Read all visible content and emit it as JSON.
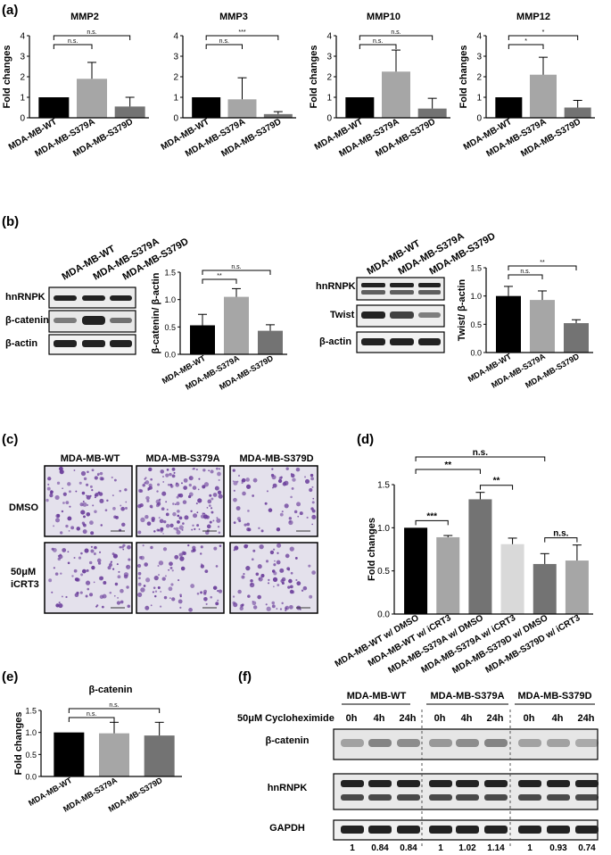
{
  "panel_labels": [
    "(a)",
    "(b)",
    "(c)",
    "(d)",
    "(e)",
    "(f)"
  ],
  "colors": {
    "wt": "#000000",
    "s379a": "#a6a6a6",
    "s379d": "#737373",
    "light": "#d9d9d9",
    "stain": "#6a3d9a",
    "background": "#ffffff"
  },
  "ylabel_fold": "Fold changes",
  "groups3": [
    "MDA-MB-WT",
    "MDA-MB-S379A",
    "MDA-MB-S379D"
  ],
  "panel_b": {
    "blot1_rows": [
      "hnRNPK",
      "β-catenin",
      "β-actin"
    ],
    "blot2_rows": [
      "hnRNPK",
      "Twist",
      "β-actin"
    ],
    "chart1_ylabel": "β-catenin/ β-actin",
    "chart2_ylabel": "Twist/ β-actin"
  },
  "panel_c": {
    "columns": [
      "MDA-MB-WT",
      "MDA-MB-S379A",
      "MDA-MB-S379D"
    ],
    "rows": [
      "DMSO",
      "50μM",
      "iCRT3"
    ]
  },
  "panel_f": {
    "groups": [
      "MDA-MB-WT",
      "MDA-MB-S379A",
      "MDA-MB-S379D"
    ],
    "treatment": "50μM Cycloheximide",
    "times": [
      "0h",
      "4h",
      "24h"
    ],
    "blot_rows": [
      "β-catenin",
      "hnRNPK",
      "GAPDH"
    ],
    "ratios": [
      "1",
      "0.84",
      "0.84",
      "1",
      "1.02",
      "1.14",
      "1",
      "0.93",
      "0.74"
    ]
  },
  "chart_data": [
    {
      "id": "a1",
      "type": "bar",
      "title": "MMP2",
      "ylabel": "Fold changes",
      "categories": [
        "MDA-MB-WT",
        "MDA-MB-S379A",
        "MDA-MB-S379D"
      ],
      "values": [
        1.0,
        1.9,
        0.55
      ],
      "errors": [
        0,
        0.8,
        0.45
      ],
      "ylim": [
        0,
        4
      ],
      "yticks": [
        "0",
        "1",
        "2",
        "3",
        "4"
      ],
      "sig": [
        {
          "from": 0,
          "to": 1,
          "label": "n.s."
        },
        {
          "from": 0,
          "to": 2,
          "label": "n.s."
        }
      ]
    },
    {
      "id": "a2",
      "type": "bar",
      "title": "MMP3",
      "ylabel": "",
      "categories": [
        "MDA-MB-WT",
        "MDA-MB-S379A",
        "MDA-MB-S379D"
      ],
      "values": [
        1.0,
        0.9,
        0.18
      ],
      "errors": [
        0,
        1.05,
        0.12
      ],
      "ylim": [
        0,
        4
      ],
      "yticks": [
        "0",
        "1",
        "2",
        "3",
        "4"
      ],
      "sig": [
        {
          "from": 0,
          "to": 1,
          "label": "n.s."
        },
        {
          "from": 0,
          "to": 2,
          "label": "***"
        }
      ]
    },
    {
      "id": "a3",
      "type": "bar",
      "title": "MMP10",
      "ylabel": "Fold changes",
      "categories": [
        "MDA-MB-WT",
        "MDA-MB-S379A",
        "MDA-MB-S379D"
      ],
      "values": [
        1.0,
        2.25,
        0.45
      ],
      "errors": [
        0,
        1.05,
        0.5
      ],
      "ylim": [
        0,
        4
      ],
      "yticks": [
        "0",
        "1",
        "2",
        "3",
        "4"
      ],
      "sig": [
        {
          "from": 0,
          "to": 1,
          "label": "n.s."
        },
        {
          "from": 0,
          "to": 2,
          "label": "n.s."
        }
      ]
    },
    {
      "id": "a4",
      "type": "bar",
      "title": "MMP12",
      "ylabel": "Fold changes",
      "categories": [
        "MDA-MB-WT",
        "MDA-MB-S379A",
        "MDA-MB-S379D"
      ],
      "values": [
        1.0,
        2.1,
        0.5
      ],
      "errors": [
        0,
        0.85,
        0.35
      ],
      "ylim": [
        0,
        4
      ],
      "yticks": [
        "0",
        "1",
        "2",
        "3",
        "4"
      ],
      "sig": [
        {
          "from": 0,
          "to": 1,
          "label": "*"
        },
        {
          "from": 0,
          "to": 2,
          "label": "*"
        }
      ]
    },
    {
      "id": "b1",
      "type": "bar",
      "title": "",
      "ylabel": "β-catenin/ β-actin",
      "categories": [
        "MDA-MB-WT",
        "MDA-MB-S379A",
        "MDA-MB-S379D"
      ],
      "values": [
        0.53,
        1.05,
        0.43
      ],
      "errors": [
        0.2,
        0.15,
        0.11
      ],
      "ylim": [
        0,
        1.5
      ],
      "yticks": [
        "0.0",
        "0.5",
        "1.0",
        "1.5"
      ],
      "sig": [
        {
          "from": 0,
          "to": 1,
          "label": "**"
        },
        {
          "from": 0,
          "to": 2,
          "label": "n.s."
        }
      ]
    },
    {
      "id": "b2",
      "type": "bar",
      "title": "",
      "ylabel": "Twist/ β-actin",
      "categories": [
        "MDA-MB-WT",
        "MDA-MB-S379A",
        "MDA-MB-S379D"
      ],
      "values": [
        1.0,
        0.93,
        0.52
      ],
      "errors": [
        0.17,
        0.16,
        0.06
      ],
      "ylim": [
        0,
        1.5
      ],
      "yticks": [
        "0.0",
        "0.5",
        "1.0",
        "1.5"
      ],
      "sig": [
        {
          "from": 0,
          "to": 1,
          "label": "n.s."
        },
        {
          "from": 0,
          "to": 2,
          "label": "**"
        }
      ]
    },
    {
      "id": "d",
      "type": "bar",
      "title": "",
      "ylabel": "Fold changes",
      "categories": [
        "MDA-MB-WT w/ DMSO",
        "MDA-MB-WT w/ iCRT3",
        "MDA-MB-S379A w/ DMSO",
        "MDA-MB-S379A w/ iCRT3",
        "MDA-MB-S379D w/ DMSO",
        "MDA-MB-S379D w/ iCRT3"
      ],
      "values": [
        1.0,
        0.89,
        1.33,
        0.81,
        0.58,
        0.62
      ],
      "errors": [
        0,
        0.02,
        0.08,
        0.07,
        0.12,
        0.18
      ],
      "ylim": [
        0,
        1.5
      ],
      "yticks": [
        "0.0",
        "0.5",
        "1.0",
        "1.5"
      ],
      "sig": [
        {
          "from": 0,
          "to": 1,
          "label": "***"
        },
        {
          "from": 2,
          "to": 3,
          "label": "**"
        },
        {
          "from": 4,
          "to": 5,
          "label": "n.s."
        },
        {
          "from": 0,
          "to": 2,
          "label": "**"
        },
        {
          "from": 0,
          "to": 4,
          "label": "n.s."
        }
      ]
    },
    {
      "id": "e",
      "type": "bar",
      "title": "β-catenin",
      "ylabel": "Fold changes",
      "categories": [
        "MDA-MB-WT",
        "MDA-MB-S379A",
        "MDA-MB-S379D"
      ],
      "values": [
        1.0,
        0.98,
        0.93
      ],
      "errors": [
        0,
        0.25,
        0.3
      ],
      "ylim": [
        0,
        1.5
      ],
      "yticks": [
        "0.0",
        "0.5",
        "1.0",
        "1.5"
      ],
      "sig": [
        {
          "from": 0,
          "to": 1,
          "label": "n.s."
        },
        {
          "from": 0,
          "to": 2,
          "label": "n.s."
        }
      ]
    }
  ]
}
